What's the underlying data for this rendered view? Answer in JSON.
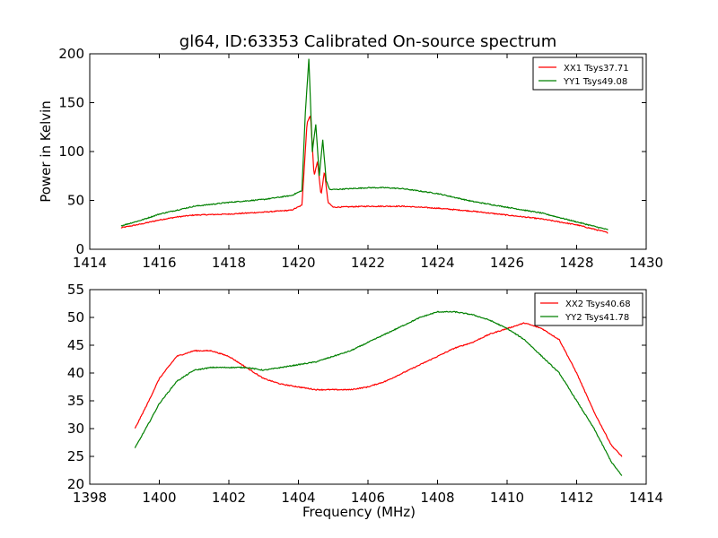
{
  "figure": {
    "title": "gl64, ID:63353 Calibrated On-source spectrum"
  },
  "chart_data": [
    {
      "type": "line",
      "title": "gl64, ID:63353 Calibrated On-source spectrum",
      "xlabel": "",
      "ylabel": "Power in Kelvin",
      "xlim": [
        1414,
        1430
      ],
      "ylim": [
        0,
        200
      ],
      "xticks": [
        1414,
        1416,
        1418,
        1420,
        1422,
        1424,
        1426,
        1428,
        1430
      ],
      "yticks": [
        0,
        50,
        100,
        150,
        200
      ],
      "grid": false,
      "legend_position": "top-right",
      "series": [
        {
          "name": "XX1 Tsys37.71",
          "color": "#ff0000",
          "x": [
            1414.9,
            1415.5,
            1416.0,
            1416.5,
            1417.0,
            1418.0,
            1419.0,
            1419.8,
            1420.1,
            1420.25,
            1420.35,
            1420.45,
            1420.55,
            1420.65,
            1420.75,
            1420.85,
            1421.0,
            1422.0,
            1423.0,
            1424.0,
            1425.0,
            1426.0,
            1427.0,
            1428.0,
            1428.9
          ],
          "y": [
            22,
            26,
            30,
            33,
            35,
            36,
            38,
            40,
            45,
            130,
            137,
            75,
            90,
            55,
            80,
            48,
            43,
            44,
            44,
            42,
            39,
            35,
            31,
            25,
            17
          ]
        },
        {
          "name": "YY1 Tsys49.08",
          "color": "#008000",
          "x": [
            1414.9,
            1415.5,
            1416.0,
            1416.5,
            1417.0,
            1418.0,
            1419.0,
            1419.8,
            1420.1,
            1420.2,
            1420.3,
            1420.4,
            1420.5,
            1420.6,
            1420.7,
            1420.8,
            1420.9,
            1421.5,
            1422.0,
            1422.5,
            1423.0,
            1424.0,
            1425.0,
            1426.0,
            1427.0,
            1428.0,
            1428.9
          ],
          "y": [
            24,
            30,
            36,
            40,
            44,
            48,
            51,
            55,
            60,
            140,
            195,
            100,
            128,
            75,
            112,
            70,
            61,
            62,
            63,
            63,
            62,
            57,
            49,
            43,
            37,
            28,
            20
          ]
        }
      ]
    },
    {
      "type": "line",
      "title": "",
      "xlabel": "Frequency (MHz)",
      "ylabel": "",
      "xlim": [
        1398,
        1414
      ],
      "ylim": [
        20,
        55
      ],
      "xticks": [
        1398,
        1400,
        1402,
        1404,
        1406,
        1408,
        1410,
        1412,
        1414
      ],
      "yticks": [
        20,
        25,
        30,
        35,
        40,
        45,
        50,
        55
      ],
      "grid": false,
      "legend_position": "top-right",
      "series": [
        {
          "name": "XX2 Tsys40.68",
          "color": "#ff0000",
          "x": [
            1399.3,
            1399.7,
            1400.0,
            1400.5,
            1401.0,
            1401.5,
            1402.0,
            1402.5,
            1403.0,
            1403.5,
            1404.0,
            1404.5,
            1405.0,
            1405.5,
            1406.0,
            1406.5,
            1407.0,
            1407.5,
            1408.0,
            1408.5,
            1409.0,
            1409.5,
            1410.0,
            1410.5,
            1411.0,
            1411.5,
            1412.0,
            1412.5,
            1413.0,
            1413.3
          ],
          "y": [
            30,
            35,
            39,
            43,
            44,
            44,
            43,
            41,
            39,
            38,
            37.5,
            37,
            37,
            37,
            37.5,
            38.5,
            40,
            41.5,
            43,
            44.5,
            45.5,
            47,
            48,
            49,
            48,
            46,
            40,
            33,
            27,
            25
          ]
        },
        {
          "name": "YY2 Tsys41.78",
          "color": "#008000",
          "x": [
            1399.3,
            1399.7,
            1400.0,
            1400.5,
            1401.0,
            1401.5,
            1402.0,
            1402.5,
            1403.0,
            1403.5,
            1404.0,
            1404.5,
            1405.0,
            1405.5,
            1406.0,
            1406.5,
            1407.0,
            1407.5,
            1408.0,
            1408.5,
            1409.0,
            1409.5,
            1410.0,
            1410.5,
            1411.0,
            1411.5,
            1412.0,
            1412.5,
            1413.0,
            1413.3
          ],
          "y": [
            26.5,
            31,
            34.5,
            38.5,
            40.5,
            41,
            41,
            41,
            40.5,
            41,
            41.5,
            42,
            43,
            44,
            45.5,
            47,
            48.5,
            50,
            51,
            51,
            50.5,
            49.5,
            48,
            46,
            43,
            40,
            35,
            30,
            24,
            21.5
          ]
        }
      ]
    }
  ]
}
